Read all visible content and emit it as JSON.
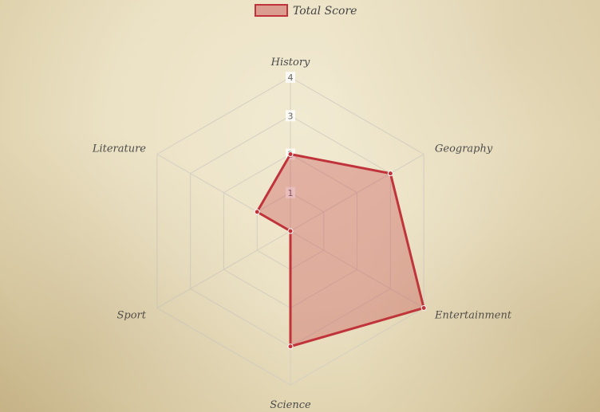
{
  "chart_data": {
    "type": "radar",
    "categories": [
      "History",
      "Geography",
      "Entertainment",
      "Science",
      "Sport",
      "Literature"
    ],
    "series": [
      {
        "name": "Total Score",
        "values": [
          2,
          3,
          4,
          3,
          0,
          1
        ]
      }
    ],
    "rlim": [
      0,
      4
    ],
    "ticks": [
      "1",
      "2",
      "3",
      "4"
    ],
    "legend_position": "top",
    "colors": {
      "border": "#c0333a",
      "fill": "#c0333a",
      "fill_alpha": 0.3,
      "grid": "#d4cfc2"
    }
  }
}
